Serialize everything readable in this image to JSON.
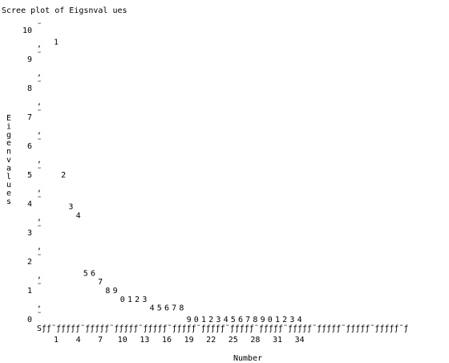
{
  "chart_data": {
    "type": "scatter",
    "title": "Scree plot of Eigsnval ues",
    "ylabel": "Eigenvalues",
    "xlabel": "Number",
    "x_ticks": [
      "1",
      "4",
      "7",
      "10",
      "13",
      "16",
      "19",
      "22",
      "25",
      "28",
      "31",
      "34"
    ],
    "y_ticks": [
      "0",
      "1",
      "2",
      "3",
      "4",
      "5",
      "6",
      "7",
      "8",
      "9",
      "10"
    ],
    "ylim": [
      0,
      10
    ],
    "xlim": [
      1,
      35
    ],
    "axis_rule_text": "Sƒƒ˜ƒƒƒƒƒ˜ƒƒƒƒƒ˜ƒƒƒƒƒ˜ƒƒƒƒƒ˜ƒƒƒƒƒ˜ƒƒƒƒƒ˜ƒƒƒƒƒ˜ƒƒƒƒƒ˜ƒƒƒƒƒ˜ƒƒƒƒƒ˜ƒƒƒƒƒ˜ƒƒƒƒƒ˜ƒ",
    "y_tick_mark": "˜",
    "y_minor_mark": ",",
    "points": [
      {
        "x": 1,
        "y": 9.6,
        "label": "1"
      },
      {
        "x": 2,
        "y": 5.0,
        "label": "2"
      },
      {
        "x": 3,
        "y": 3.9,
        "label": "3"
      },
      {
        "x": 4,
        "y": 3.6,
        "label": "4"
      },
      {
        "x": 5,
        "y": 1.6,
        "label": "5"
      },
      {
        "x": 6,
        "y": 1.6,
        "label": "6"
      },
      {
        "x": 7,
        "y": 1.3,
        "label": "7"
      },
      {
        "x": 8,
        "y": 1.0,
        "label": "8"
      },
      {
        "x": 9,
        "y": 1.0,
        "label": "9"
      },
      {
        "x": 10,
        "y": 0.7,
        "label": "0"
      },
      {
        "x": 11,
        "y": 0.7,
        "label": "1"
      },
      {
        "x": 12,
        "y": 0.7,
        "label": "2"
      },
      {
        "x": 13,
        "y": 0.7,
        "label": "3"
      },
      {
        "x": 14,
        "y": 0.4,
        "label": "4"
      },
      {
        "x": 15,
        "y": 0.4,
        "label": "5"
      },
      {
        "x": 16,
        "y": 0.4,
        "label": "6"
      },
      {
        "x": 17,
        "y": 0.4,
        "label": "7"
      },
      {
        "x": 18,
        "y": 0.4,
        "label": "8"
      },
      {
        "x": 19,
        "y": 0.0,
        "label": "9"
      },
      {
        "x": 20,
        "y": 0.0,
        "label": "0"
      },
      {
        "x": 21,
        "y": 0.0,
        "label": "1"
      },
      {
        "x": 22,
        "y": 0.0,
        "label": "2"
      },
      {
        "x": 23,
        "y": 0.0,
        "label": "3"
      },
      {
        "x": 24,
        "y": 0.0,
        "label": "4"
      },
      {
        "x": 25,
        "y": 0.0,
        "label": "5"
      },
      {
        "x": 26,
        "y": 0.0,
        "label": "6"
      },
      {
        "x": 27,
        "y": 0.0,
        "label": "7"
      },
      {
        "x": 28,
        "y": 0.0,
        "label": "8"
      },
      {
        "x": 29,
        "y": 0.0,
        "label": "9"
      },
      {
        "x": 30,
        "y": 0.0,
        "label": "0"
      },
      {
        "x": 31,
        "y": 0.0,
        "label": "1"
      },
      {
        "x": 32,
        "y": 0.0,
        "label": "2"
      },
      {
        "x": 33,
        "y": 0.0,
        "label": "3"
      },
      {
        "x": 34,
        "y": 0.0,
        "label": "4"
      }
    ]
  }
}
